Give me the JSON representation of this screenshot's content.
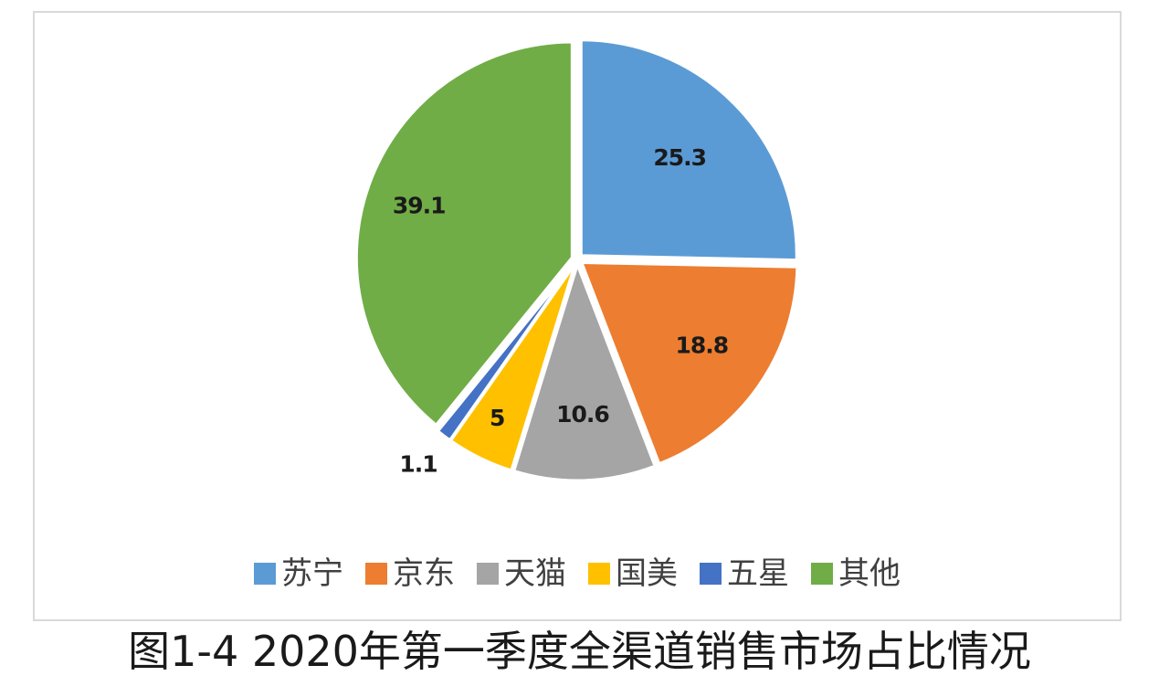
{
  "chart_data": {
    "type": "pie",
    "categories": [
      "苏宁",
      "京东",
      "天猫",
      "国美",
      "五星",
      "其他"
    ],
    "values": [
      25.3,
      18.8,
      10.6,
      5,
      1.1,
      39.1
    ],
    "value_labels": [
      "25.3",
      "18.8",
      "10.6",
      "5",
      "1.1",
      "39.1"
    ],
    "colors": [
      "#5b9bd5",
      "#ed7d31",
      "#a5a5a5",
      "#ffc000",
      "#4472c4",
      "#70ad47"
    ],
    "start_angle": "12 o'clock",
    "direction": "clockwise",
    "legend": "bottom",
    "caption": "图1-4  2020年第一季度全渠道销售市场占比情况"
  }
}
